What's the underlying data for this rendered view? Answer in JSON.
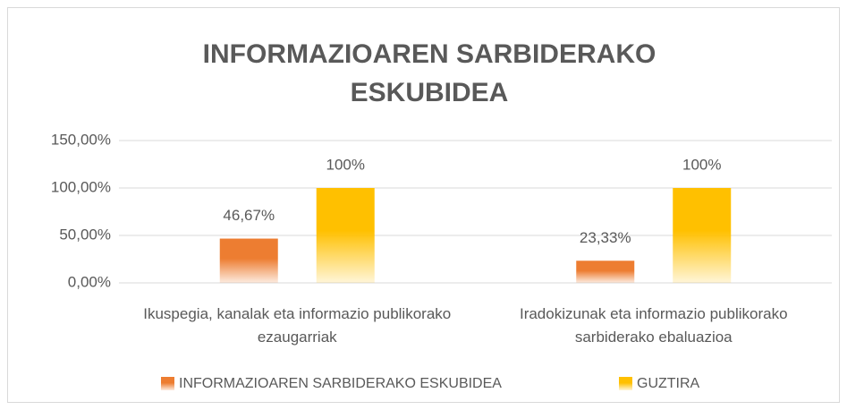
{
  "chart_data": {
    "type": "bar",
    "title": "INFORMAZIOAREN SARBIDERAKO ESKUBIDEA",
    "categories": [
      "Ikuspegia, kanalak eta informazio publikorako ezaugarriak",
      "Iradokizunak eta informazio publikorako sarbiderako ebaluazioa"
    ],
    "series": [
      {
        "name": "INFORMAZIOAREN SARBIDERAKO ESKUBIDEA",
        "color": "#ed7d31",
        "values": [
          46.67,
          23.33
        ],
        "value_labels": [
          "46,67%",
          "23,33%"
        ]
      },
      {
        "name": "GUZTIRA",
        "color": "#ffc000",
        "values": [
          100,
          100
        ],
        "value_labels": [
          "100%",
          "100%"
        ]
      }
    ],
    "ylim": [
      0,
      150
    ],
    "yticks": [
      {
        "value": 0,
        "label": "0,00%"
      },
      {
        "value": 50,
        "label": "50,00%"
      },
      {
        "value": 100,
        "label": "100,00%"
      },
      {
        "value": 150,
        "label": "150,00%"
      }
    ],
    "grid": true,
    "legend": "bottom"
  }
}
